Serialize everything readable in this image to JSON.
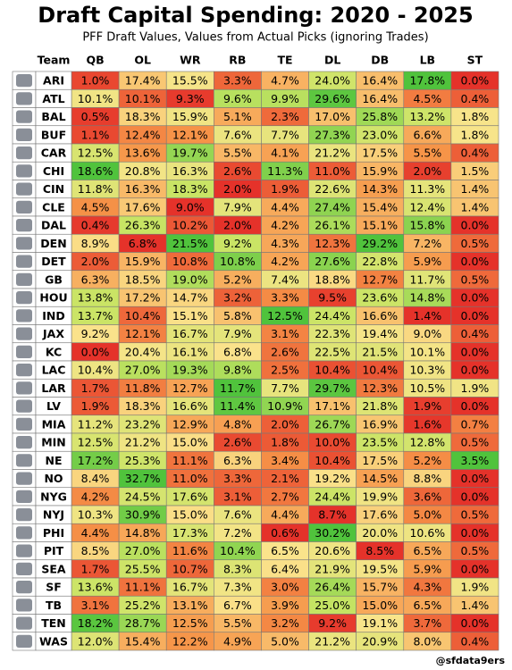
{
  "title": "Draft Capital Spending: 2020 - 2025",
  "subtitle": "PFF Draft Values, Values from Actual Picks (ignoring Trades)",
  "columns": [
    "Team",
    "QB",
    "OL",
    "WR",
    "RB",
    "TE",
    "DL",
    "DB",
    "LB",
    "ST"
  ],
  "rows": [
    [
      "ARI",
      "1.0%",
      "17.4%",
      "15.5%",
      "3.3%",
      "4.7%",
      "24.0%",
      "16.4%",
      "17.8%",
      "0.0%"
    ],
    [
      "ATL",
      "10.1%",
      "10.1%",
      "9.3%",
      "9.6%",
      "9.9%",
      "29.6%",
      "16.4%",
      "4.5%",
      "0.4%"
    ],
    [
      "BAL",
      "0.5%",
      "18.3%",
      "15.9%",
      "5.1%",
      "2.3%",
      "17.0%",
      "25.8%",
      "13.2%",
      "1.8%"
    ],
    [
      "BUF",
      "1.1%",
      "12.4%",
      "12.1%",
      "7.6%",
      "7.7%",
      "27.3%",
      "23.0%",
      "6.6%",
      "1.8%"
    ],
    [
      "CAR",
      "12.5%",
      "13.6%",
      "19.7%",
      "5.5%",
      "4.1%",
      "21.2%",
      "17.5%",
      "5.5%",
      "0.4%"
    ],
    [
      "CHI",
      "18.6%",
      "20.8%",
      "16.3%",
      "2.6%",
      "11.3%",
      "11.0%",
      "15.9%",
      "2.0%",
      "1.5%"
    ],
    [
      "CIN",
      "11.8%",
      "16.3%",
      "18.3%",
      "2.0%",
      "1.9%",
      "22.6%",
      "14.3%",
      "11.3%",
      "1.4%"
    ],
    [
      "CLE",
      "4.5%",
      "17.6%",
      "9.0%",
      "7.9%",
      "4.4%",
      "27.4%",
      "15.4%",
      "12.4%",
      "1.4%"
    ],
    [
      "DAL",
      "0.4%",
      "26.3%",
      "10.2%",
      "2.0%",
      "4.2%",
      "26.1%",
      "15.1%",
      "15.8%",
      "0.0%"
    ],
    [
      "DEN",
      "8.9%",
      "6.8%",
      "21.5%",
      "9.2%",
      "4.3%",
      "12.3%",
      "29.2%",
      "7.2%",
      "0.5%"
    ],
    [
      "DET",
      "2.0%",
      "15.9%",
      "10.8%",
      "10.8%",
      "4.2%",
      "27.6%",
      "22.8%",
      "5.9%",
      "0.0%"
    ],
    [
      "GB",
      "6.3%",
      "18.5%",
      "19.0%",
      "5.2%",
      "7.4%",
      "18.8%",
      "12.7%",
      "11.7%",
      "0.5%"
    ],
    [
      "HOU",
      "13.8%",
      "17.2%",
      "14.7%",
      "3.2%",
      "3.3%",
      "9.5%",
      "23.6%",
      "14.8%",
      "0.0%"
    ],
    [
      "IND",
      "13.7%",
      "10.4%",
      "15.1%",
      "5.8%",
      "12.5%",
      "24.4%",
      "16.6%",
      "1.4%",
      "0.0%"
    ],
    [
      "JAX",
      "9.2%",
      "12.1%",
      "16.7%",
      "7.9%",
      "3.1%",
      "22.3%",
      "19.4%",
      "9.0%",
      "0.4%"
    ],
    [
      "KC",
      "0.0%",
      "20.4%",
      "16.1%",
      "6.8%",
      "2.6%",
      "22.5%",
      "21.5%",
      "10.1%",
      "0.0%"
    ],
    [
      "LAC",
      "10.4%",
      "27.0%",
      "19.3%",
      "9.8%",
      "2.5%",
      "10.4%",
      "10.4%",
      "10.3%",
      "0.0%"
    ],
    [
      "LAR",
      "1.7%",
      "11.8%",
      "12.7%",
      "11.7%",
      "7.7%",
      "29.7%",
      "12.3%",
      "10.5%",
      "1.9%"
    ],
    [
      "LV",
      "1.9%",
      "18.3%",
      "16.6%",
      "11.4%",
      "10.9%",
      "17.1%",
      "21.8%",
      "1.9%",
      "0.0%"
    ],
    [
      "MIA",
      "11.2%",
      "23.2%",
      "12.9%",
      "4.8%",
      "2.0%",
      "26.7%",
      "16.9%",
      "1.6%",
      "0.7%"
    ],
    [
      "MIN",
      "12.5%",
      "21.2%",
      "15.0%",
      "2.6%",
      "1.8%",
      "10.0%",
      "23.5%",
      "12.8%",
      "0.5%"
    ],
    [
      "NE",
      "17.2%",
      "25.3%",
      "11.1%",
      "6.3%",
      "3.4%",
      "10.4%",
      "17.5%",
      "5.2%",
      "3.5%"
    ],
    [
      "NO",
      "8.4%",
      "32.7%",
      "11.0%",
      "3.3%",
      "2.1%",
      "19.2%",
      "14.5%",
      "8.8%",
      "0.0%"
    ],
    [
      "NYG",
      "4.2%",
      "24.5%",
      "17.6%",
      "3.1%",
      "2.7%",
      "24.4%",
      "19.9%",
      "3.6%",
      "0.0%"
    ],
    [
      "NYJ",
      "10.3%",
      "30.9%",
      "15.0%",
      "7.6%",
      "4.4%",
      "8.7%",
      "17.6%",
      "5.0%",
      "0.5%"
    ],
    [
      "PHI",
      "4.4%",
      "14.8%",
      "17.3%",
      "7.2%",
      "0.6%",
      "30.2%",
      "20.0%",
      "10.6%",
      "0.0%"
    ],
    [
      "PIT",
      "8.5%",
      "27.0%",
      "11.6%",
      "10.4%",
      "6.5%",
      "20.6%",
      "8.5%",
      "6.5%",
      "0.5%"
    ],
    [
      "SEA",
      "1.7%",
      "25.5%",
      "10.7%",
      "8.3%",
      "6.4%",
      "21.9%",
      "19.5%",
      "5.9%",
      "0.0%"
    ],
    [
      "SF",
      "13.6%",
      "11.1%",
      "16.7%",
      "7.3%",
      "3.0%",
      "26.4%",
      "15.7%",
      "4.3%",
      "1.9%"
    ],
    [
      "TB",
      "3.1%",
      "25.2%",
      "13.1%",
      "6.7%",
      "3.9%",
      "25.0%",
      "15.0%",
      "6.5%",
      "1.4%"
    ],
    [
      "TEN",
      "18.2%",
      "28.7%",
      "12.5%",
      "5.5%",
      "3.2%",
      "9.2%",
      "19.1%",
      "3.7%",
      "0.0%"
    ],
    [
      "WAS",
      "12.0%",
      "15.4%",
      "12.2%",
      "4.9%",
      "5.0%",
      "21.2%",
      "20.9%",
      "8.0%",
      "0.4%"
    ]
  ],
  "credit": "@sfdata9ers"
}
